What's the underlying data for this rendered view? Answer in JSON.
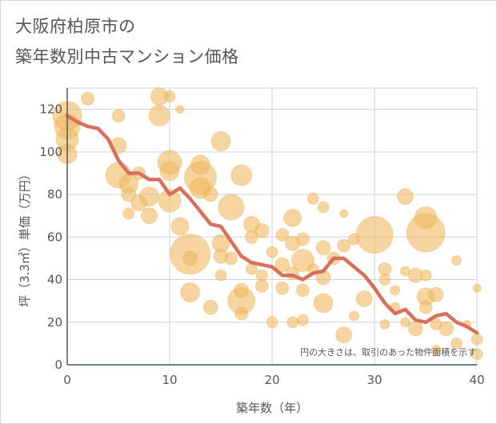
{
  "title_line1": "大阪府柏原市の",
  "title_line2": "築年数別中古マンション価格",
  "chart_data": {
    "type": "scatter",
    "title": "大阪府柏原市の 築年数別中古マンション価格",
    "xlabel": "築年数（年）",
    "ylabel": "坪（3.3㎡）単価（万円）",
    "xlim": [
      0,
      40
    ],
    "ylim": [
      0,
      130
    ],
    "x_ticks": [
      0,
      10,
      20,
      30,
      40
    ],
    "y_ticks": [
      0,
      20,
      40,
      60,
      80,
      100,
      120
    ],
    "grid": true,
    "annotation": "円の大きさは、取引のあった物件面積を示す",
    "colors": {
      "bubble": "#f0b960",
      "line": "#d9705a",
      "grid": "#c9d3e0",
      "axis": "#4a5a6a"
    },
    "series": [
      {
        "kind": "bubbles",
        "points": [
          {
            "x": 0,
            "y": 117,
            "s": 18
          },
          {
            "x": 0,
            "y": 112,
            "s": 16
          },
          {
            "x": 0,
            "y": 106,
            "s": 14
          },
          {
            "x": 0,
            "y": 99,
            "s": 12
          },
          {
            "x": 2,
            "y": 125,
            "s": 8
          },
          {
            "x": 5,
            "y": 117,
            "s": 8
          },
          {
            "x": 5,
            "y": 103,
            "s": 10
          },
          {
            "x": 5,
            "y": 89,
            "s": 16
          },
          {
            "x": 6,
            "y": 85,
            "s": 12
          },
          {
            "x": 6,
            "y": 80,
            "s": 9
          },
          {
            "x": 6,
            "y": 71,
            "s": 7
          },
          {
            "x": 7,
            "y": 76,
            "s": 10
          },
          {
            "x": 7,
            "y": 90,
            "s": 8
          },
          {
            "x": 8,
            "y": 79,
            "s": 12
          },
          {
            "x": 8,
            "y": 70,
            "s": 10
          },
          {
            "x": 9,
            "y": 126,
            "s": 11
          },
          {
            "x": 9,
            "y": 117,
            "s": 13
          },
          {
            "x": 10,
            "y": 126,
            "s": 7
          },
          {
            "x": 11,
            "y": 120,
            "s": 5
          },
          {
            "x": 10,
            "y": 95,
            "s": 15
          },
          {
            "x": 10,
            "y": 91,
            "s": 12
          },
          {
            "x": 10,
            "y": 77,
            "s": 14
          },
          {
            "x": 11,
            "y": 65,
            "s": 11
          },
          {
            "x": 12,
            "y": 52,
            "s": 25
          },
          {
            "x": 12,
            "y": 50,
            "s": 9
          },
          {
            "x": 12,
            "y": 34,
            "s": 12
          },
          {
            "x": 13,
            "y": 88,
            "s": 20
          },
          {
            "x": 13,
            "y": 94,
            "s": 12
          },
          {
            "x": 13,
            "y": 83,
            "s": 13
          },
          {
            "x": 14,
            "y": 80,
            "s": 9
          },
          {
            "x": 14,
            "y": 27,
            "s": 9
          },
          {
            "x": 15,
            "y": 105,
            "s": 12
          },
          {
            "x": 15,
            "y": 57,
            "s": 11
          },
          {
            "x": 15,
            "y": 51,
            "s": 9
          },
          {
            "x": 15,
            "y": 42,
            "s": 7
          },
          {
            "x": 16,
            "y": 74,
            "s": 16
          },
          {
            "x": 16,
            "y": 50,
            "s": 8
          },
          {
            "x": 17,
            "y": 89,
            "s": 13
          },
          {
            "x": 17,
            "y": 30,
            "s": 17
          },
          {
            "x": 17,
            "y": 35,
            "s": 9
          },
          {
            "x": 17,
            "y": 24,
            "s": 8
          },
          {
            "x": 18,
            "y": 66,
            "s": 10
          },
          {
            "x": 18,
            "y": 60,
            "s": 8
          },
          {
            "x": 18,
            "y": 45,
            "s": 7
          },
          {
            "x": 19,
            "y": 63,
            "s": 9
          },
          {
            "x": 19,
            "y": 42,
            "s": 7
          },
          {
            "x": 19,
            "y": 37,
            "s": 8
          },
          {
            "x": 20,
            "y": 53,
            "s": 7
          },
          {
            "x": 20,
            "y": 20,
            "s": 7
          },
          {
            "x": 21,
            "y": 61,
            "s": 8
          },
          {
            "x": 21,
            "y": 47,
            "s": 9
          },
          {
            "x": 21,
            "y": 36,
            "s": 8
          },
          {
            "x": 22,
            "y": 69,
            "s": 11
          },
          {
            "x": 22,
            "y": 57,
            "s": 9
          },
          {
            "x": 22,
            "y": 43,
            "s": 8
          },
          {
            "x": 22,
            "y": 20,
            "s": 7
          },
          {
            "x": 23,
            "y": 59,
            "s": 8
          },
          {
            "x": 23,
            "y": 49,
            "s": 14
          },
          {
            "x": 23,
            "y": 35,
            "s": 8
          },
          {
            "x": 23,
            "y": 21,
            "s": 7
          },
          {
            "x": 24,
            "y": 45,
            "s": 7
          },
          {
            "x": 24,
            "y": 78,
            "s": 7
          },
          {
            "x": 25,
            "y": 55,
            "s": 9
          },
          {
            "x": 25,
            "y": 41,
            "s": 9
          },
          {
            "x": 25,
            "y": 29,
            "s": 12
          },
          {
            "x": 25,
            "y": 74,
            "s": 7
          },
          {
            "x": 26,
            "y": 50,
            "s": 8
          },
          {
            "x": 27,
            "y": 56,
            "s": 8
          },
          {
            "x": 27,
            "y": 71,
            "s": 5
          },
          {
            "x": 27,
            "y": 14,
            "s": 10
          },
          {
            "x": 28,
            "y": 59,
            "s": 7
          },
          {
            "x": 28,
            "y": 23,
            "s": 6
          },
          {
            "x": 29,
            "y": 31,
            "s": 10
          },
          {
            "x": 30,
            "y": 61,
            "s": 23
          },
          {
            "x": 31,
            "y": 45,
            "s": 8
          },
          {
            "x": 31,
            "y": 40,
            "s": 7
          },
          {
            "x": 31,
            "y": 19,
            "s": 6
          },
          {
            "x": 32,
            "y": 35,
            "s": 6
          },
          {
            "x": 32,
            "y": 27,
            "s": 6
          },
          {
            "x": 33,
            "y": 79,
            "s": 10
          },
          {
            "x": 33,
            "y": 44,
            "s": 6
          },
          {
            "x": 33,
            "y": 20,
            "s": 6
          },
          {
            "x": 34,
            "y": 42,
            "s": 9
          },
          {
            "x": 34,
            "y": 17,
            "s": 9
          },
          {
            "x": 35,
            "y": 69,
            "s": 14
          },
          {
            "x": 35,
            "y": 62,
            "s": 24
          },
          {
            "x": 35,
            "y": 42,
            "s": 7
          },
          {
            "x": 35,
            "y": 32,
            "s": 11
          },
          {
            "x": 35,
            "y": 27,
            "s": 8
          },
          {
            "x": 36,
            "y": 33,
            "s": 9
          },
          {
            "x": 36,
            "y": 19,
            "s": 7
          },
          {
            "x": 36,
            "y": 7,
            "s": 6
          },
          {
            "x": 37,
            "y": 17,
            "s": 9
          },
          {
            "x": 38,
            "y": 49,
            "s": 6
          },
          {
            "x": 38,
            "y": 10,
            "s": 7
          },
          {
            "x": 39,
            "y": 19,
            "s": 5
          },
          {
            "x": 40,
            "y": 36,
            "s": 5
          },
          {
            "x": 40,
            "y": 12,
            "s": 7
          },
          {
            "x": 40,
            "y": 5,
            "s": 7
          }
        ]
      },
      {
        "kind": "trend-line",
        "x": [
          0,
          1,
          2,
          3,
          4,
          5,
          6,
          7,
          8,
          9,
          10,
          11,
          12,
          13,
          14,
          15,
          16,
          17,
          18,
          19,
          20,
          21,
          22,
          23,
          24,
          25,
          26,
          27,
          28,
          29,
          30,
          31,
          32,
          33,
          34,
          35,
          36,
          37,
          38,
          39,
          40
        ],
        "y": [
          117,
          114,
          112,
          111,
          106,
          96,
          90,
          90,
          87,
          87,
          80,
          83,
          78,
          72,
          66,
          65,
          58,
          51,
          48,
          47,
          46,
          42,
          42,
          40,
          43,
          44,
          50,
          50,
          46,
          42,
          36,
          29,
          24,
          26,
          21,
          20,
          23,
          24,
          20,
          18,
          15
        ]
      }
    ]
  }
}
